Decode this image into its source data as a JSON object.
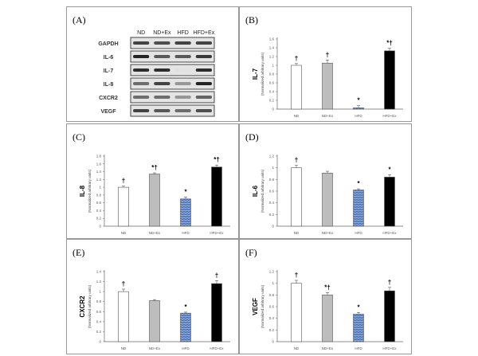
{
  "blot": {
    "label": "(A)",
    "columns": [
      "ND",
      "ND+Ex",
      "HFD",
      "HFD+Ex"
    ],
    "rows": [
      {
        "name": "GAPDH",
        "intensity": [
          0.8,
          0.75,
          0.8,
          0.8
        ]
      },
      {
        "name": "IL-6",
        "intensity": [
          0.95,
          0.7,
          0.7,
          0.85
        ]
      },
      {
        "name": "IL-7",
        "intensity": [
          0.9,
          0.9,
          0.05,
          0.9
        ]
      },
      {
        "name": "IL-8",
        "intensity": [
          0.6,
          0.8,
          0.4,
          0.95
        ]
      },
      {
        "name": "CXCR2",
        "intensity": [
          0.6,
          0.6,
          0.4,
          0.65
        ]
      },
      {
        "name": "VEGF",
        "intensity": [
          0.8,
          0.7,
          0.6,
          0.75
        ]
      }
    ]
  },
  "colors": {
    "ND": "#ffffff",
    "ND+Ex": "#bdbdbd",
    "HFD": "#4a6fb5",
    "HFD+Ex": "#000000"
  },
  "chart_data": [
    {
      "type": "bar",
      "label": "(B)",
      "ylabel": "IL-7",
      "ysublabel": "(Normalized arbitrary units)",
      "categories": [
        "ND",
        "ND+Ex",
        "HFD",
        "HFD+Ex"
      ],
      "ylim": [
        0,
        1.6
      ],
      "yticks": [
        "0",
        "0.2",
        "0.4",
        "0.6",
        "0.8",
        "1",
        "1.2",
        "1.4",
        "1.6"
      ],
      "values": [
        1.0,
        1.05,
        0.03,
        1.33
      ],
      "errors": [
        0.04,
        0.07,
        0.05,
        0.06
      ],
      "annotations": [
        "†",
        "†",
        "*",
        "*†"
      ]
    },
    {
      "type": "bar",
      "label": "(C)",
      "ylabel": "IL-8",
      "ysublabel": "(Normalized arbitrary units)",
      "categories": [
        "ND",
        "ND+Ex",
        "HFD",
        "HFD+Ex"
      ],
      "ylim": [
        0,
        1.8
      ],
      "yticks": [
        "0",
        "0.2",
        "0.4",
        "0.6",
        "0.8",
        "1",
        "1.2",
        "1.4",
        "1.6",
        "1.8"
      ],
      "values": [
        1.0,
        1.34,
        0.7,
        1.52
      ],
      "errors": [
        0.03,
        0.03,
        0.05,
        0.05
      ],
      "annotations": [
        "†",
        "*†",
        "*",
        "*†"
      ]
    },
    {
      "type": "bar",
      "label": "(D)",
      "ylabel": "IL-6",
      "ysublabel": "(Normalized arbitrary units)",
      "categories": [
        "ND",
        "ND+Ex",
        "HFD",
        "HFD+Ex"
      ],
      "ylim": [
        0,
        1.2
      ],
      "yticks": [
        "0",
        "0.2",
        "0.4",
        "0.6",
        "0.8",
        "1",
        "1.2"
      ],
      "values": [
        1.0,
        0.91,
        0.62,
        0.84
      ],
      "errors": [
        0.04,
        0.03,
        0.02,
        0.04
      ],
      "annotations": [
        "†",
        "",
        "*",
        "*"
      ]
    },
    {
      "type": "bar",
      "label": "(E)",
      "ylabel": "CXCR2",
      "ysublabel": "(Normalized arbitrary units)",
      "categories": [
        "ND",
        "ND+Ex",
        "HFD",
        "HFD+Ex"
      ],
      "ylim": [
        0,
        1.4
      ],
      "yticks": [
        "0",
        "0.2",
        "0.4",
        "0.6",
        "0.8",
        "1",
        "1.2",
        "1.4"
      ],
      "values": [
        1.0,
        0.82,
        0.57,
        1.16
      ],
      "errors": [
        0.05,
        0.02,
        0.02,
        0.06
      ],
      "annotations": [
        "†",
        "",
        "*",
        "†"
      ]
    },
    {
      "type": "bar",
      "label": "(F)",
      "ylabel": "VEGF",
      "ysublabel": "(Normalized arbitrary units)",
      "categories": [
        "ND",
        "ND+Ex",
        "HFD",
        "HFD+Ex"
      ],
      "ylim": [
        0,
        1.2
      ],
      "yticks": [
        "0",
        "0.2",
        "0.4",
        "0.6",
        "0.8",
        "1",
        "1.2"
      ],
      "values": [
        1.0,
        0.8,
        0.47,
        0.87
      ],
      "errors": [
        0.05,
        0.04,
        0.03,
        0.06
      ],
      "annotations": [
        "†",
        "*†",
        "*",
        "†"
      ]
    }
  ]
}
